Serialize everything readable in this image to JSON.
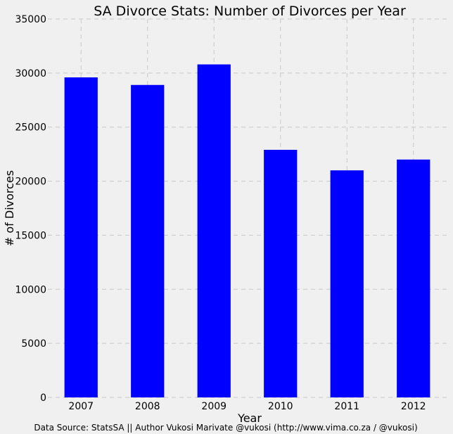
{
  "chart_data": {
    "type": "bar",
    "title": "SA Divorce Stats: Number of Divorces per Year",
    "xlabel": "Year",
    "ylabel": "# of Divorces",
    "categories": [
      "2007",
      "2008",
      "2009",
      "2010",
      "2011",
      "2012"
    ],
    "values": [
      29600,
      28900,
      30800,
      22900,
      21000,
      22000
    ],
    "ylim": [
      0,
      35000
    ],
    "yticks": [
      0,
      5000,
      10000,
      15000,
      20000,
      25000,
      30000,
      35000
    ],
    "grid": true,
    "bar_color": "#0000ff",
    "source_note": "Data Source: StatsSA || Author Vukosi Marivate @vukosi (http://www.vima.co.za / @vukosi)"
  }
}
